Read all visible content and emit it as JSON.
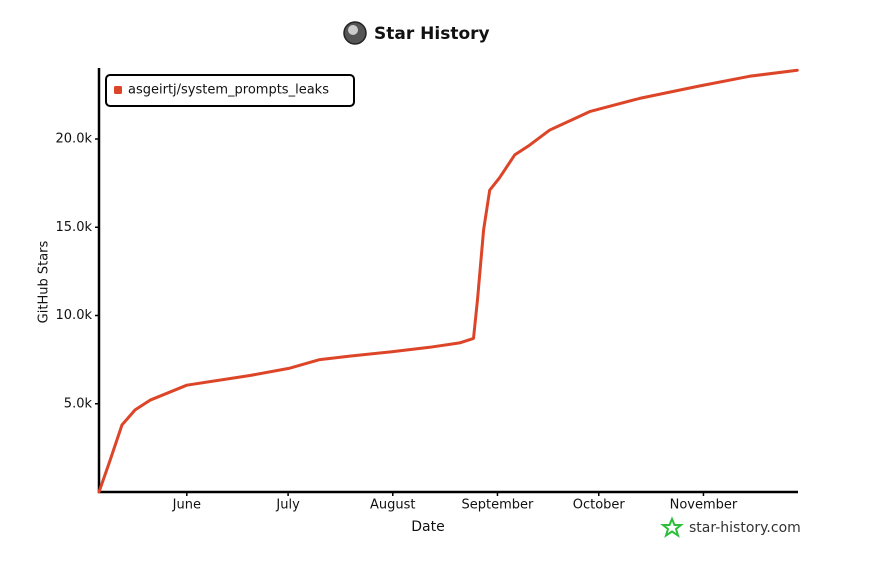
{
  "chart_data": {
    "type": "line",
    "title": "Star History",
    "x_label": "Date",
    "y_label": "GitHub Stars",
    "x": [
      0,
      3.3,
      6.8,
      10.7,
      15.1,
      26,
      44.7,
      56.2,
      65.4,
      74.3,
      86.7,
      97.9,
      106.8,
      110.9,
      112.1,
      113.9,
      115.7,
      118.6,
      123.1,
      127.5,
      133.4,
      145.3,
      160.1,
      177.8,
      192.6,
      206.8
    ],
    "series": [
      {
        "name": "asgeirtj/system_prompts_leaks",
        "color": "#dd4528",
        "values": [
          0,
          1800,
          3800,
          4650,
          5200,
          6050,
          6600,
          7000,
          7500,
          7700,
          7950,
          8200,
          8450,
          8700,
          10900,
          14850,
          17100,
          17800,
          19100,
          19650,
          20500,
          21550,
          22300,
          23000,
          23550,
          23900
        ]
      }
    ],
    "xlim": [
      0,
      207
    ],
    "xticks": [
      {
        "value": 26,
        "label": "June"
      },
      {
        "value": 56,
        "label": "July"
      },
      {
        "value": 87,
        "label": "August"
      },
      {
        "value": 118,
        "label": "September"
      },
      {
        "value": 148,
        "label": "October"
      },
      {
        "value": 179,
        "label": "November"
      }
    ],
    "ylim": [
      0,
      24000
    ],
    "yticks": [
      {
        "value": 5000,
        "label": "5.0k"
      },
      {
        "value": 10000,
        "label": "10.0k"
      },
      {
        "value": 15000,
        "label": "15.0k"
      },
      {
        "value": 20000,
        "label": "20.0k"
      }
    ],
    "legend": "top-left",
    "watermark": "star-history.com"
  }
}
